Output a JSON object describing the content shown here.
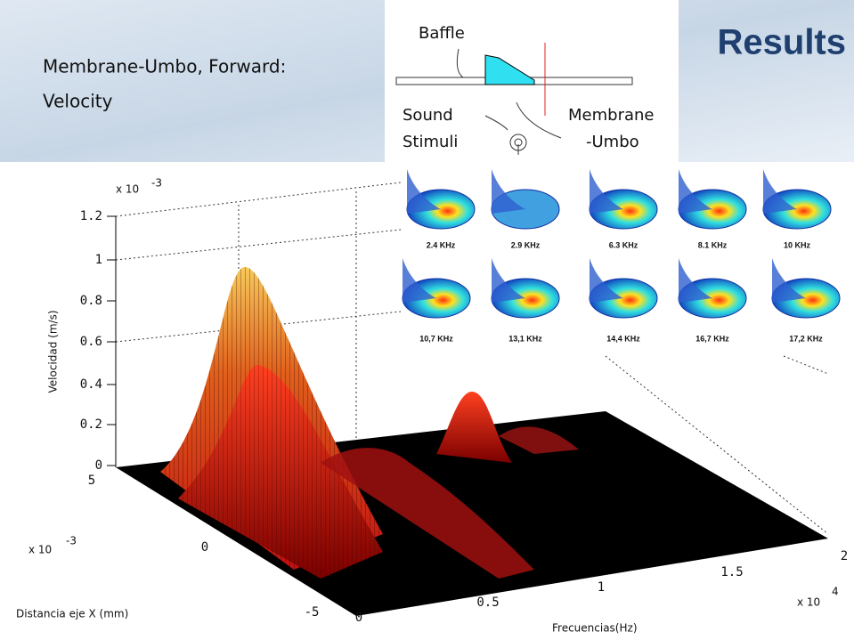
{
  "header": {
    "title_line1": "Membrane-Umbo, Forward:",
    "title_line2": "Velocity",
    "section": "Results"
  },
  "diagram": {
    "labels": [
      "Baffle",
      "Sound",
      "Stimuli",
      "Membrane",
      "-Umbo"
    ]
  },
  "plot": {
    "z_multiplier": "x 10",
    "z_exponent": "-3",
    "z_ticks": [
      "1.2",
      "1",
      "0.8",
      "0.6",
      "0.4",
      "0.2",
      "0"
    ],
    "z_label": "Velocidad (m/s)",
    "x_multiplier": "x 10",
    "x_exponent": "-3",
    "x_ticks": [
      "5",
      "0",
      "-5"
    ],
    "x_label": "Distancia eje X (mm)",
    "f_ticks": [
      "0",
      "0.5",
      "1",
      "1.5",
      "2"
    ],
    "f_multiplier": "x 10",
    "f_exponent": "4",
    "f_label": "Frecuencias(Hz)"
  },
  "modes": [
    "2.4 KHz",
    "2.9 KHz",
    "6.3 KHz",
    "8.1 KHz",
    "10 KHz",
    "10,7 KHz",
    "13,1 KHz",
    "14,4 KHz",
    "16,7 KHz",
    "17,2 KHz"
  ]
}
